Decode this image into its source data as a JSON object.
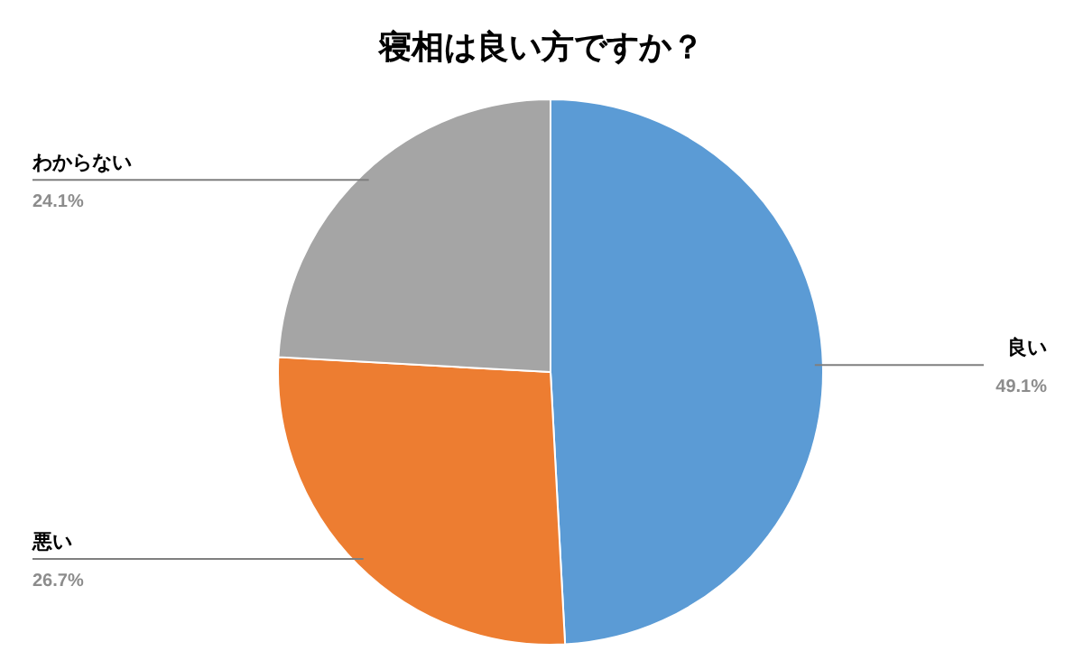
{
  "chart_data": {
    "type": "pie",
    "title": "寝相は良い方ですか？",
    "categories": [
      "良い",
      "悪い",
      "わからない"
    ],
    "values": [
      49.1,
      26.7,
      24.1
    ],
    "value_labels": [
      "49.1%",
      "26.7%",
      "24.1%"
    ],
    "colors": [
      "#5b9bd5",
      "#ed7d31",
      "#a5a5a5"
    ]
  }
}
